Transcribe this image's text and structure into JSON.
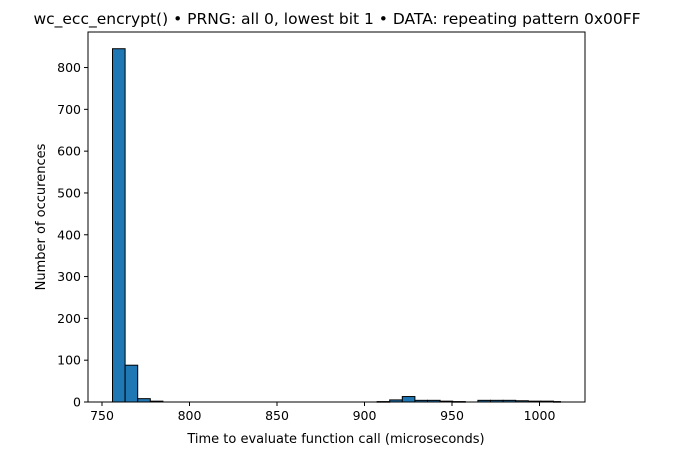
{
  "chart_data": {
    "type": "bar",
    "title": "wc_ecc_encrypt() • PRNG: all 0, lowest bit 1 • DATA: repeating pattern 0x00FF",
    "xlabel": "Time to evaluate function call (microseconds)",
    "ylabel": "Number of occurences",
    "xlim": [
      742,
      1026
    ],
    "ylim": [
      0,
      885
    ],
    "xticks": [
      750,
      800,
      850,
      900,
      950,
      1000
    ],
    "yticks": [
      0,
      100,
      200,
      300,
      400,
      500,
      600,
      700,
      800
    ],
    "grid": false,
    "bar_color": "#1f77b4",
    "edge_color": "#000000",
    "bins": [
      {
        "start": 756.0,
        "end": 763.2,
        "count": 845
      },
      {
        "start": 763.2,
        "end": 770.4,
        "count": 88
      },
      {
        "start": 770.4,
        "end": 777.6,
        "count": 8
      },
      {
        "start": 777.6,
        "end": 784.8,
        "count": 2
      },
      {
        "start": 784.8,
        "end": 792.0,
        "count": 0
      },
      {
        "start": 792.0,
        "end": 799.2,
        "count": 0
      },
      {
        "start": 799.2,
        "end": 806.4,
        "count": 0
      },
      {
        "start": 806.4,
        "end": 813.6,
        "count": 0
      },
      {
        "start": 813.6,
        "end": 820.8,
        "count": 0
      },
      {
        "start": 820.8,
        "end": 828.0,
        "count": 0
      },
      {
        "start": 828.0,
        "end": 835.2,
        "count": 0
      },
      {
        "start": 835.2,
        "end": 842.4,
        "count": 0
      },
      {
        "start": 842.4,
        "end": 849.6,
        "count": 0
      },
      {
        "start": 849.6,
        "end": 856.8,
        "count": 0
      },
      {
        "start": 856.8,
        "end": 864.0,
        "count": 0
      },
      {
        "start": 864.0,
        "end": 871.2,
        "count": 0
      },
      {
        "start": 871.2,
        "end": 878.4,
        "count": 0
      },
      {
        "start": 878.4,
        "end": 885.6,
        "count": 0
      },
      {
        "start": 885.6,
        "end": 892.8,
        "count": 0
      },
      {
        "start": 892.8,
        "end": 900.0,
        "count": 0
      },
      {
        "start": 900.0,
        "end": 907.2,
        "count": 0
      },
      {
        "start": 907.2,
        "end": 914.4,
        "count": 1
      },
      {
        "start": 914.4,
        "end": 921.6,
        "count": 5
      },
      {
        "start": 921.6,
        "end": 928.8,
        "count": 13
      },
      {
        "start": 928.8,
        "end": 936.0,
        "count": 4
      },
      {
        "start": 936.0,
        "end": 943.2,
        "count": 4
      },
      {
        "start": 943.2,
        "end": 950.4,
        "count": 2
      },
      {
        "start": 950.4,
        "end": 957.6,
        "count": 1
      },
      {
        "start": 957.6,
        "end": 964.8,
        "count": 0
      },
      {
        "start": 964.8,
        "end": 972.0,
        "count": 4
      },
      {
        "start": 972.0,
        "end": 979.2,
        "count": 4
      },
      {
        "start": 979.2,
        "end": 986.4,
        "count": 4
      },
      {
        "start": 986.4,
        "end": 993.6,
        "count": 3
      },
      {
        "start": 993.6,
        "end": 1000.8,
        "count": 2
      },
      {
        "start": 1000.8,
        "end": 1008.0,
        "count": 2
      },
      {
        "start": 1008.0,
        "end": 1012.0,
        "count": 1
      }
    ]
  }
}
